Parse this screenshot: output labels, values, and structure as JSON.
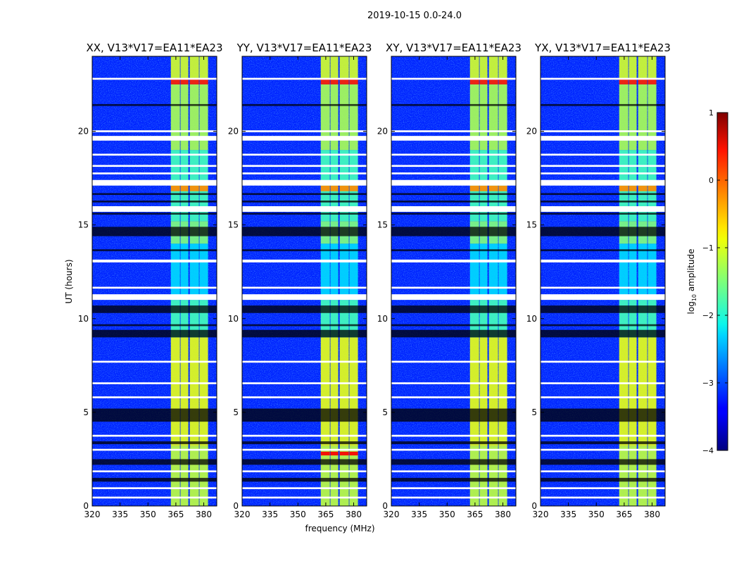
{
  "chart_data": {
    "type": "heatmap",
    "suptitle": "2019-10-15 0.0-24.0",
    "xlabel": "frequency (MHz)",
    "ylabel": "UT (hours)",
    "xlim": [
      320,
      387
    ],
    "ylim": [
      0,
      24
    ],
    "xticks": [
      320,
      335,
      350,
      365,
      380
    ],
    "yticks": [
      0,
      5,
      10,
      15,
      20
    ],
    "panels": [
      {
        "title": "XX, V13*V17=EA11*EA23",
        "hot_at_2_8h": false
      },
      {
        "title": "YY, V13*V17=EA11*EA23",
        "hot_at_2_8h": true
      },
      {
        "title": "XY, V13*V17=EA11*EA23",
        "hot_at_2_8h": false
      },
      {
        "title": "YX, V13*V17=EA11*EA23",
        "hot_at_2_8h": false
      }
    ],
    "background_level": -3.2,
    "subbands_mhz": [
      [
        362.3,
        367.2
      ],
      [
        367.5,
        371.7
      ],
      [
        372.5,
        377.4
      ],
      [
        377.7,
        382.3
      ]
    ],
    "band_levels": [
      {
        "t": [
          0,
          3.2
        ],
        "level": -1.2
      },
      {
        "t": [
          3.2,
          9.0
        ],
        "level": -1.0
      },
      {
        "t": [
          9.0,
          11.0
        ],
        "level": -1.8
      },
      {
        "t": [
          11.0,
          14.0
        ],
        "level": -2.3
      },
      {
        "t": [
          14.0,
          15.2
        ],
        "level": -1.5
      },
      {
        "t": [
          15.2,
          19.0
        ],
        "level": -1.8
      },
      {
        "t": [
          16.8,
          17.1
        ],
        "level": -0.3
      },
      {
        "t": [
          19.0,
          22.5
        ],
        "level": -1.3
      },
      {
        "t": [
          22.5,
          22.8
        ],
        "level": 0.2
      },
      {
        "t": [
          22.8,
          24.0
        ],
        "level": -1.1
      }
    ],
    "hot_segment": {
      "t": [
        2.7,
        2.9
      ],
      "level": 0.4
    },
    "flags": [
      {
        "t": [
          22.75,
          22.85
        ],
        "kind": "white"
      },
      {
        "t": [
          21.35,
          21.45
        ],
        "kind": "black"
      },
      {
        "t": [
          19.95,
          20.05
        ],
        "kind": "white"
      },
      {
        "t": [
          19.5,
          19.75
        ],
        "kind": "white"
      },
      {
        "t": [
          18.7,
          18.8
        ],
        "kind": "white"
      },
      {
        "t": [
          18.1,
          18.2
        ],
        "kind": "white"
      },
      {
        "t": [
          17.7,
          17.8
        ],
        "kind": "white"
      },
      {
        "t": [
          17.1,
          17.4
        ],
        "kind": "white"
      },
      {
        "t": [
          16.6,
          16.7
        ],
        "kind": "black"
      },
      {
        "t": [
          16.2,
          16.3
        ],
        "kind": "black"
      },
      {
        "t": [
          15.7,
          16.0
        ],
        "kind": "white"
      },
      {
        "t": [
          15.55,
          15.65
        ],
        "kind": "black"
      },
      {
        "t": [
          14.4,
          14.9
        ],
        "kind": "black"
      },
      {
        "t": [
          13.6,
          13.7
        ],
        "kind": "black"
      },
      {
        "t": [
          13.0,
          13.15
        ],
        "kind": "white"
      },
      {
        "t": [
          11.6,
          11.7
        ],
        "kind": "white"
      },
      {
        "t": [
          11.0,
          11.3
        ],
        "kind": "white"
      },
      {
        "t": [
          10.3,
          10.7
        ],
        "kind": "black"
      },
      {
        "t": [
          9.6,
          9.7
        ],
        "kind": "black"
      },
      {
        "t": [
          9.0,
          9.4
        ],
        "kind": "black"
      },
      {
        "t": [
          7.65,
          7.75
        ],
        "kind": "white"
      },
      {
        "t": [
          6.5,
          6.6
        ],
        "kind": "white"
      },
      {
        "t": [
          5.75,
          5.85
        ],
        "kind": "white"
      },
      {
        "t": [
          4.5,
          5.2
        ],
        "kind": "black"
      },
      {
        "t": [
          3.7,
          3.8
        ],
        "kind": "white"
      },
      {
        "t": [
          3.3,
          3.45
        ],
        "kind": "black"
      },
      {
        "t": [
          2.95,
          3.05
        ],
        "kind": "white"
      },
      {
        "t": [
          2.2,
          2.5
        ],
        "kind": "black"
      },
      {
        "t": [
          1.8,
          1.9
        ],
        "kind": "white"
      },
      {
        "t": [
          1.3,
          1.5
        ],
        "kind": "black"
      },
      {
        "t": [
          0.9,
          1.0
        ],
        "kind": "white"
      },
      {
        "t": [
          0.4,
          0.5
        ],
        "kind": "white"
      }
    ],
    "colorbar": {
      "label": "log10 amplitude",
      "label_main": "log",
      "label_sub": "10",
      "label_rest": " amplitude",
      "range": [
        -4,
        1
      ],
      "ticks": [
        1,
        0,
        -1,
        -2,
        -3,
        -4
      ],
      "colormap": "jet"
    }
  }
}
